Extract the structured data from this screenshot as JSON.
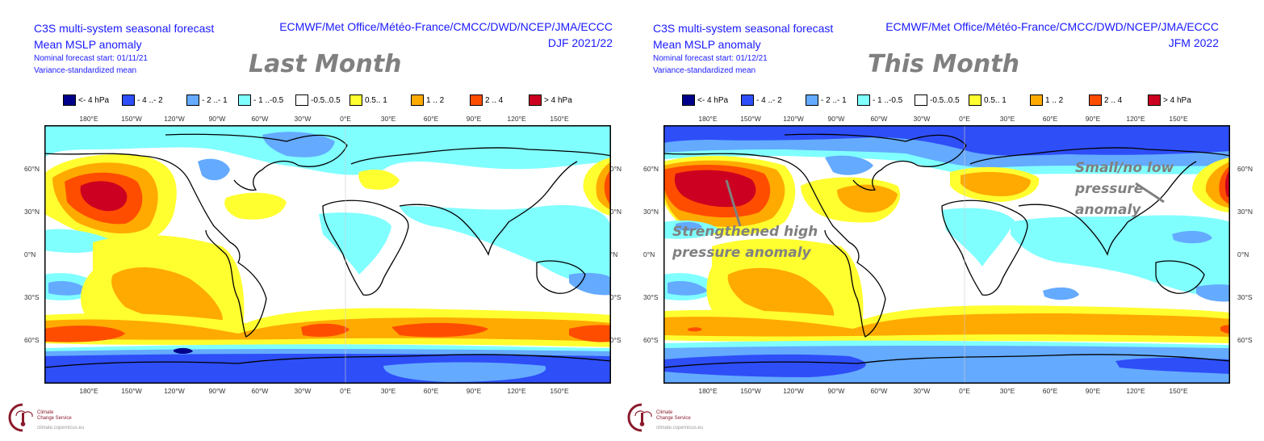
{
  "colors": {
    "title_text": "#1a1aff",
    "big_label": "#808080",
    "legend": [
      "#00008b",
      "#2e4ef8",
      "#64aaff",
      "#80ffff",
      "#ffffff",
      "#ffff30",
      "#ffaa00",
      "#ff4d00",
      "#cc0020"
    ],
    "logo": "#8b1a2b"
  },
  "legend": [
    {
      "label": "<- 4 hPa",
      "color": "#00008b"
    },
    {
      "label": "- 4 ..- 2",
      "color": "#2e4ef8"
    },
    {
      "label": "- 2 ..- 1",
      "color": "#64aaff"
    },
    {
      "label": "- 1 ..-0.5",
      "color": "#80ffff"
    },
    {
      "label": "-0.5..0.5",
      "color": "#ffffff"
    },
    {
      "label": "0.5.. 1",
      "color": "#ffff30"
    },
    {
      "label": "1 .. 2",
      "color": "#ffaa00"
    },
    {
      "label": "2 .. 4",
      "color": "#ff4d00"
    },
    {
      "label": ">  4 hPa",
      "color": "#cc0020"
    }
  ],
  "axes": {
    "lon_ticks": [
      "180°E",
      "150°W",
      "120°W",
      "90°W",
      "60°W",
      "30°W",
      "0°E",
      "30°E",
      "60°E",
      "90°E",
      "120°E",
      "150°E"
    ],
    "lat_ticks": [
      "60°N",
      "30°N",
      "0°N",
      "30°S",
      "60°S"
    ]
  },
  "logo": {
    "icon": "thermometer-cloud-icon",
    "line1": "Climate",
    "line2": "Change Service",
    "line3": "climate.copernicus.eu"
  },
  "panels": [
    {
      "title": "C3S multi-system seasonal forecast",
      "subtitle": "Mean MSLP anomaly",
      "forecast_start": "Nominal forecast start: 01/11/21",
      "method": "Variance-standardized mean",
      "centers": "ECMWF/Met Office/Météo-France/CMCC/DWD/NCEP/JMA/ECCC",
      "season": "DJF 2021/22",
      "overlay_label": "Last Month"
    },
    {
      "title": "C3S multi-system seasonal forecast",
      "subtitle": "Mean MSLP anomaly",
      "forecast_start": "Nominal forecast start: 01/12/21",
      "method": "Variance-standardized mean",
      "centers": "ECMWF/Met Office/Météo-France/CMCC/DWD/NCEP/JMA/ECCC",
      "season": "JFM 2022",
      "overlay_label": "This Month",
      "annotations": [
        {
          "line1": "Strengthened high",
          "line2": "pressure anomaly"
        },
        {
          "line1": "Small/no low",
          "line2": "pressure",
          "line3": "anomaly"
        }
      ]
    }
  ]
}
